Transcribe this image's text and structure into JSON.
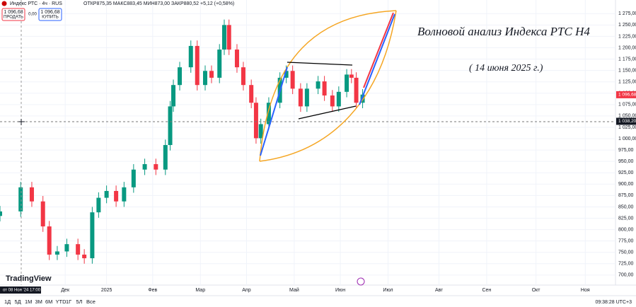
{
  "chart_data": {
    "type": "candlestick",
    "title": "Волновой анализ Индекса РТС Н4",
    "subtitle": "( 14 июня 2025 г.)",
    "header": {
      "ohlc": "ОТКР875,35 МАКС883,45 МИН873,00 ЗАКР880,52 +5,12 (+0,58%)",
      "sell_price": "1 096,68",
      "sell": "ПРОДАТЬ",
      "spread": "0,00",
      "buy_price": "1 096,68",
      "buy": "КУПИТЬ"
    },
    "series": [
      {
        "name": "Индекс РТС · 4ч · RUS",
        "up_color": "#089981",
        "down_color": "#f23645",
        "x": [
          0,
          13,
          20,
          27,
          31,
          36,
          42,
          49,
          53,
          58,
          62,
          67,
          73,
          78,
          84,
          91,
          98,
          104,
          107,
          109,
          113,
          120,
          124,
          129,
          133,
          138,
          141,
          144,
          149,
          153,
          158,
          161,
          164,
          169,
          176,
          180,
          184,
          189,
          193,
          200,
          204,
          209,
          213,
          218,
          221,
          224,
          228
        ],
        "open": [
          830,
          840,
          893,
          862,
          807,
          745,
          752,
          768,
          745,
          737,
          838,
          870,
          885,
          862,
          893,
          932,
          944,
          932,
          986,
          1071,
          1118,
          1157,
          1204,
          1118,
          1149,
          1134,
          1196,
          1250,
          1196,
          1157,
          1118,
          1079,
          1001,
          1032,
          1079,
          1134,
          1149,
          1110,
          1071,
          1110,
          1126,
          1095,
          1071,
          1103,
          1141,
          1134,
          1079
        ],
        "high": [
          852,
          905,
          905,
          874,
          819,
          764,
          780,
          780,
          757,
          850,
          882,
          897,
          897,
          905,
          944,
          956,
          956,
          998,
          1083,
          1130,
          1169,
          1216,
          1216,
          1161,
          1161,
          1208,
          1262,
          1262,
          1208,
          1169,
          1130,
          1091,
          1044,
          1091,
          1146,
          1161,
          1161,
          1122,
          1122,
          1138,
          1138,
          1107,
          1115,
          1153,
          1153,
          1146,
          1109
        ],
        "low": [
          818,
          828,
          850,
          795,
          733,
          733,
          740,
          733,
          725,
          725,
          826,
          858,
          850,
          850,
          881,
          920,
          920,
          920,
          974,
          1059,
          1106,
          1145,
          1106,
          1106,
          1122,
          1122,
          1184,
          1184,
          1145,
          1106,
          1067,
          989,
          989,
          1020,
          1067,
          1122,
          1098,
          1059,
          1059,
          1098,
          1083,
          1059,
          1059,
          1091,
          1122,
          1067,
          1067
        ],
        "close": [
          840,
          893,
          862,
          807,
          745,
          752,
          768,
          745,
          737,
          838,
          870,
          885,
          862,
          893,
          932,
          944,
          932,
          986,
          1071,
          1118,
          1157,
          1204,
          1118,
          1149,
          1134,
          1196,
          1250,
          1196,
          1157,
          1118,
          1079,
          1001,
          1032,
          1079,
          1134,
          1149,
          1110,
          1071,
          1110,
          1126,
          1095,
          1071,
          1103,
          1141,
          1134,
          1079,
          1097
        ]
      }
    ],
    "xlim": [
      0,
      387
    ],
    "xticks": [
      {
        "value": 41,
        "label": "Дек"
      },
      {
        "value": 67,
        "label": "2025"
      },
      {
        "value": 96,
        "label": "Фев"
      },
      {
        "value": 126,
        "label": "Мар"
      },
      {
        "value": 155,
        "label": "Апр"
      },
      {
        "value": 185,
        "label": "Май"
      },
      {
        "value": 214,
        "label": "Июн"
      },
      {
        "value": 244,
        "label": "Июл"
      },
      {
        "value": 276,
        "label": "Авг"
      },
      {
        "value": 306,
        "label": "Сен"
      },
      {
        "value": 337,
        "label": "Окт"
      },
      {
        "value": 368,
        "label": "Ноя"
      }
    ],
    "ylim": [
      678,
      1305
    ],
    "yticks": [
      {
        "value": 700,
        "label": "700,00"
      },
      {
        "value": 725,
        "label": "725,00"
      },
      {
        "value": 750,
        "label": "750,00"
      },
      {
        "value": 775,
        "label": "775,00"
      },
      {
        "value": 800,
        "label": "800,00"
      },
      {
        "value": 825,
        "label": "825,00"
      },
      {
        "value": 850,
        "label": "850,00"
      },
      {
        "value": 875,
        "label": "875,00"
      },
      {
        "value": 900,
        "label": "900,00"
      },
      {
        "value": 925,
        "label": "925,00"
      },
      {
        "value": 950,
        "label": "950,00"
      },
      {
        "value": 975,
        "label": "975,00"
      },
      {
        "value": 1000,
        "label": "1 000,00"
      },
      {
        "value": 1025,
        "label": "1 025,00"
      },
      {
        "value": 1050,
        "label": "1 050,00"
      },
      {
        "value": 1075,
        "label": "1 075,00"
      },
      {
        "value": 1100,
        "label": "1 100,00"
      },
      {
        "value": 1125,
        "label": "1 125,00"
      },
      {
        "value": 1150,
        "label": "1 150,00"
      },
      {
        "value": 1175,
        "label": "1 175,00"
      },
      {
        "value": 1200,
        "label": "1 200,00"
      },
      {
        "value": 1225,
        "label": "1 225,00"
      },
      {
        "value": 1250,
        "label": "1 250,00"
      },
      {
        "value": 1275,
        "label": "1 275,00"
      }
    ],
    "last_price": {
      "value": 1096.68,
      "label": "1 096,68"
    },
    "crosshair_price": {
      "value": 1038.2,
      "label": "1 038,20"
    },
    "crosshair_date": "от 08 Ноя '24  17:00",
    "logo": "TradingView",
    "timeframes": [
      "1Д",
      "5Д",
      "1М",
      "3М",
      "6М",
      "YTD",
      "1Г",
      "5Л",
      "Все"
    ],
    "clock": "09:38:28 UTC+3"
  }
}
